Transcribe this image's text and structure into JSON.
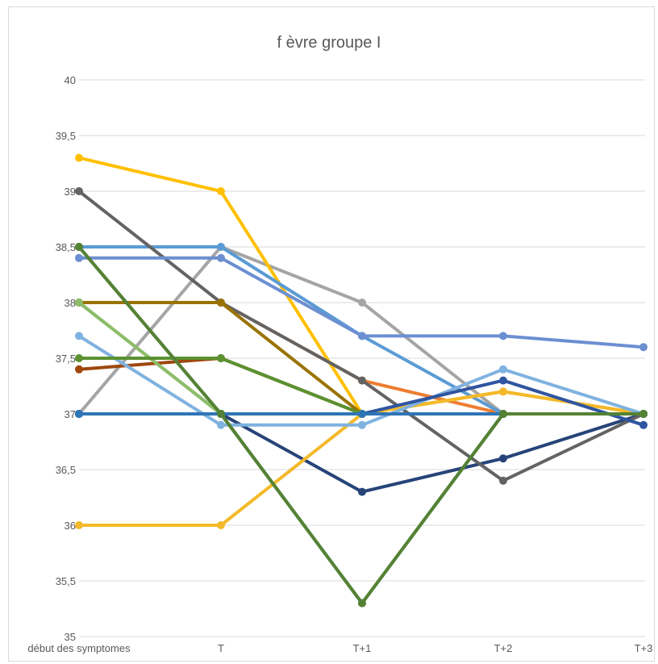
{
  "chart_data": {
    "type": "line",
    "title": "f èvre groupe I",
    "xlabel": "",
    "ylabel": "",
    "categories": [
      "début des symptomes",
      "T",
      "T+1",
      "T+2",
      "T+3"
    ],
    "ylim": [
      35,
      40
    ],
    "yticks": [
      35,
      35.5,
      36,
      36.5,
      37,
      37.5,
      38,
      38.5,
      39,
      39.5,
      40
    ],
    "ytick_labels": [
      "35",
      "35,5",
      "36",
      "36,5",
      "37",
      "37,5",
      "38",
      "38,5",
      "39",
      "39,5",
      "40"
    ],
    "grid": true,
    "legend": "none",
    "series": [
      {
        "color": "#4472c4",
        "values": [
          37.0,
          37.0,
          37.0,
          37.0,
          37.0
        ]
      },
      {
        "color": "#ed7d31",
        "values": [
          38.0,
          38.0,
          37.3,
          37.0,
          37.0
        ]
      },
      {
        "color": "#a5a5a5",
        "values": [
          37.0,
          38.5,
          38.0,
          37.0,
          37.0
        ]
      },
      {
        "color": "#ffc000",
        "values": [
          39.3,
          39.0,
          37.0,
          37.2,
          37.0
        ]
      },
      {
        "color": "#5b9bd5",
        "values": [
          38.5,
          38.5,
          37.7,
          37.0,
          37.0
        ]
      },
      {
        "color": "#70ad47",
        "values": [
          38.0,
          37.0,
          37.0,
          37.0,
          37.0
        ]
      },
      {
        "color": "#264478",
        "values": [
          37.0,
          37.0,
          36.3,
          36.6,
          37.0
        ]
      },
      {
        "color": "#9e480e",
        "values": [
          37.4,
          37.5,
          37.0,
          37.0,
          37.0
        ]
      },
      {
        "color": "#636363",
        "values": [
          39.0,
          38.0,
          37.3,
          36.4,
          37.0
        ]
      },
      {
        "color": "#997300",
        "values": [
          38.0,
          38.0,
          37.0,
          37.0,
          37.0
        ]
      },
      {
        "color": "#6b8fd1",
        "values": [
          38.4,
          38.4,
          37.7,
          37.7,
          37.6
        ]
      },
      {
        "color": "#43682b",
        "values": [
          38.5,
          37.0,
          35.3,
          37.0,
          37.0
        ]
      },
      {
        "color": "#f4b92a",
        "values": [
          36.0,
          36.0,
          37.0,
          37.2,
          37.0
        ]
      },
      {
        "color": "#7fb2e0",
        "values": [
          37.7,
          36.9,
          36.9,
          37.4,
          37.0
        ]
      },
      {
        "color": "#2f55a0",
        "values": [
          37.0,
          37.0,
          37.0,
          37.3,
          36.9
        ]
      },
      {
        "color": "#8dbd6a",
        "values": [
          38.0,
          37.0,
          37.0,
          37.0,
          37.0
        ]
      },
      {
        "color": "#5b9130",
        "values": [
          37.5,
          37.5,
          37.0,
          37.0,
          37.0
        ]
      },
      {
        "color": "#2e75b6",
        "values": [
          37.0,
          37.0,
          37.0,
          37.0,
          37.0
        ]
      },
      {
        "color": "#548235",
        "values": [
          38.5,
          37.0,
          35.3,
          37.0,
          37.0
        ]
      }
    ]
  }
}
